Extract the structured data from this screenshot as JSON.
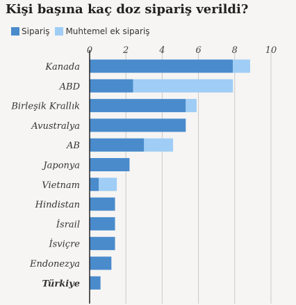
{
  "chart_data": {
    "type": "bar",
    "orientation": "horizontal",
    "stacked": true,
    "title": "Kişi başına kaç doz sipariş verildi?",
    "categories": [
      "Kanada",
      "ABD",
      "Birleşik Krallık",
      "Avustralya",
      "AB",
      "Japonya",
      "Vietnam",
      "Hindistan",
      "İsrail",
      "İsviçre",
      "Endonezya",
      "Türkiye"
    ],
    "highlight_category": "Türkiye",
    "series": [
      {
        "name": "Sipariş",
        "color": "#4a8bcc",
        "values": [
          7.9,
          2.4,
          5.3,
          5.3,
          3.0,
          2.2,
          0.5,
          1.4,
          1.4,
          1.4,
          1.2,
          0.6
        ]
      },
      {
        "name": "Muhtemel ek sipariş",
        "color": "#9fcdf5",
        "values": [
          0.95,
          5.5,
          0.6,
          0.0,
          1.6,
          0.0,
          1.0,
          0.0,
          0.0,
          0.0,
          0.0,
          0.0
        ]
      }
    ],
    "xlim": [
      0,
      10
    ],
    "xticks": [
      0,
      2,
      4,
      6,
      8,
      10
    ],
    "grid": true,
    "legend_position": "top-left"
  }
}
